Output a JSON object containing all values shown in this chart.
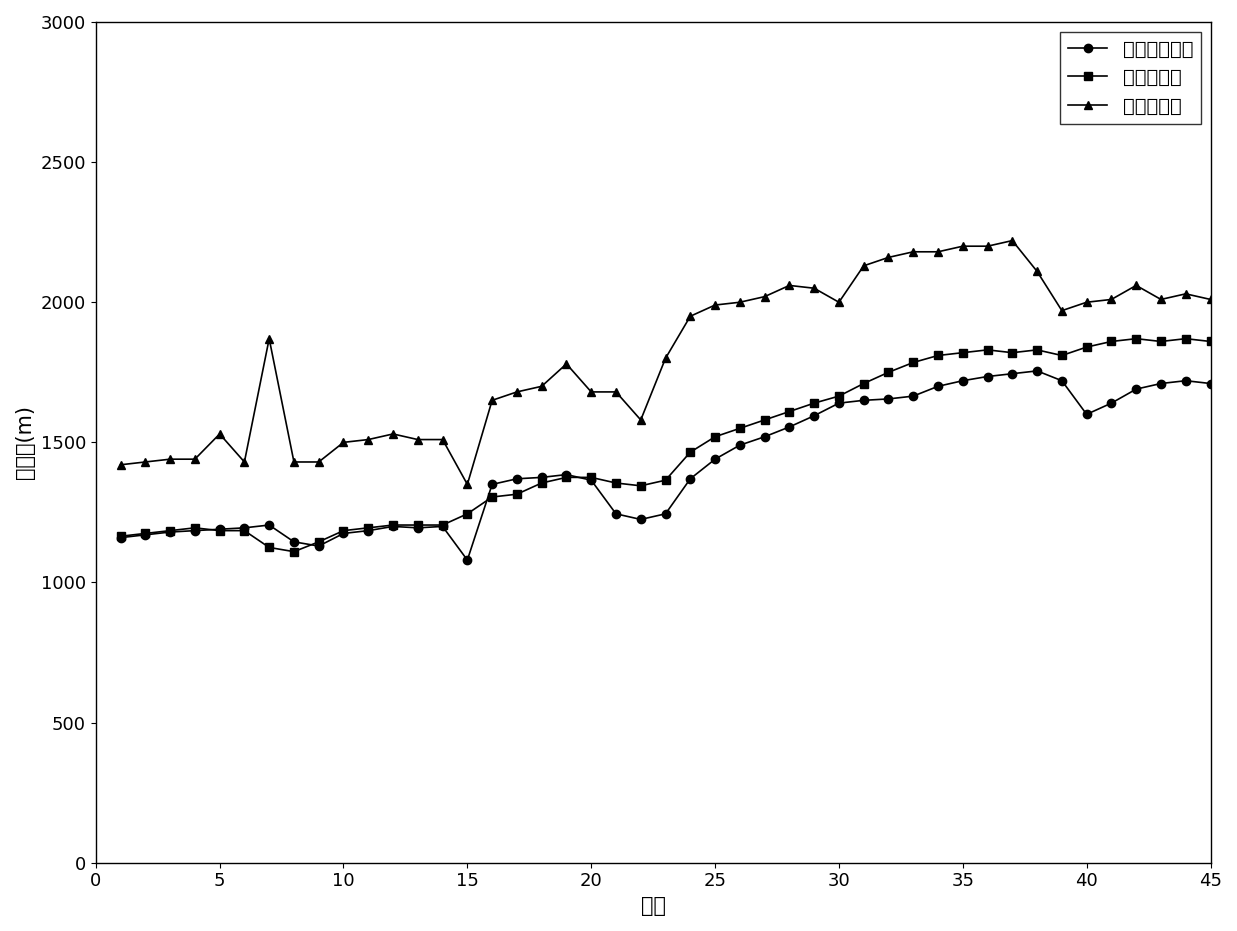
{
  "title": "",
  "xlabel": "序列",
  "ylabel": "云底高(m)",
  "xlim": [
    0,
    45
  ],
  "ylim": [
    0,
    3000
  ],
  "xticks": [
    0,
    5,
    10,
    15,
    20,
    25,
    30,
    35,
    40,
    45
  ],
  "yticks": [
    0,
    500,
    1000,
    1500,
    2000,
    2500,
    3000
  ],
  "legend_labels": [
    "本发明云底高",
    "激光云底高",
    "红外云底高"
  ],
  "series1_x": [
    1,
    2,
    3,
    4,
    5,
    6,
    7,
    8,
    9,
    10,
    11,
    12,
    13,
    14,
    15,
    16,
    17,
    18,
    19,
    20,
    21,
    22,
    23,
    24,
    25,
    26,
    27,
    28,
    29,
    30,
    31,
    32,
    33,
    34,
    35,
    36,
    37,
    38,
    39,
    40,
    41,
    42,
    43,
    44,
    45
  ],
  "series1_y": [
    1160,
    1170,
    1180,
    1185,
    1190,
    1195,
    1205,
    1145,
    1130,
    1175,
    1185,
    1200,
    1195,
    1200,
    1080,
    1350,
    1370,
    1375,
    1385,
    1365,
    1245,
    1225,
    1245,
    1370,
    1440,
    1490,
    1520,
    1555,
    1595,
    1640,
    1650,
    1655,
    1665,
    1700,
    1720,
    1735,
    1745,
    1755,
    1720,
    1600,
    1640,
    1690,
    1710,
    1720,
    1710
  ],
  "series2_x": [
    1,
    2,
    3,
    4,
    5,
    6,
    7,
    8,
    9,
    10,
    11,
    12,
    13,
    14,
    15,
    16,
    17,
    18,
    19,
    20,
    21,
    22,
    23,
    24,
    25,
    26,
    27,
    28,
    29,
    30,
    31,
    32,
    33,
    34,
    35,
    36,
    37,
    38,
    39,
    40,
    41,
    42,
    43,
    44,
    45
  ],
  "series2_y": [
    1165,
    1175,
    1185,
    1195,
    1185,
    1185,
    1125,
    1110,
    1145,
    1185,
    1195,
    1205,
    1205,
    1205,
    1245,
    1305,
    1315,
    1355,
    1375,
    1375,
    1355,
    1345,
    1365,
    1465,
    1520,
    1550,
    1580,
    1610,
    1640,
    1665,
    1710,
    1750,
    1785,
    1810,
    1820,
    1830,
    1820,
    1830,
    1810,
    1840,
    1860,
    1870,
    1860,
    1870,
    1860
  ],
  "series3_x": [
    1,
    2,
    3,
    4,
    5,
    6,
    7,
    8,
    9,
    10,
    11,
    12,
    13,
    14,
    15,
    16,
    17,
    18,
    19,
    20,
    21,
    22,
    23,
    24,
    25,
    26,
    27,
    28,
    29,
    30,
    31,
    32,
    33,
    34,
    35,
    36,
    37,
    38,
    39,
    40,
    41,
    42,
    43,
    44,
    45
  ],
  "series3_y": [
    1420,
    1430,
    1440,
    1440,
    1530,
    1430,
    1870,
    1430,
    1430,
    1500,
    1510,
    1530,
    1510,
    1510,
    1350,
    1650,
    1680,
    1700,
    1780,
    1680,
    1680,
    1580,
    1800,
    1950,
    1990,
    2000,
    2020,
    2060,
    2050,
    2000,
    2130,
    2160,
    2180,
    2180,
    2200,
    2200,
    2220,
    2110,
    1970,
    2000,
    2010,
    2060,
    2010,
    2030,
    2010
  ],
  "line_color": "#000000",
  "bg_color": "#ffffff",
  "marker1": "o",
  "marker2": "s",
  "marker3": "^",
  "markersize": 6,
  "linewidth": 1.2,
  "font_size_label": 15,
  "font_size_tick": 13,
  "font_size_legend": 14
}
